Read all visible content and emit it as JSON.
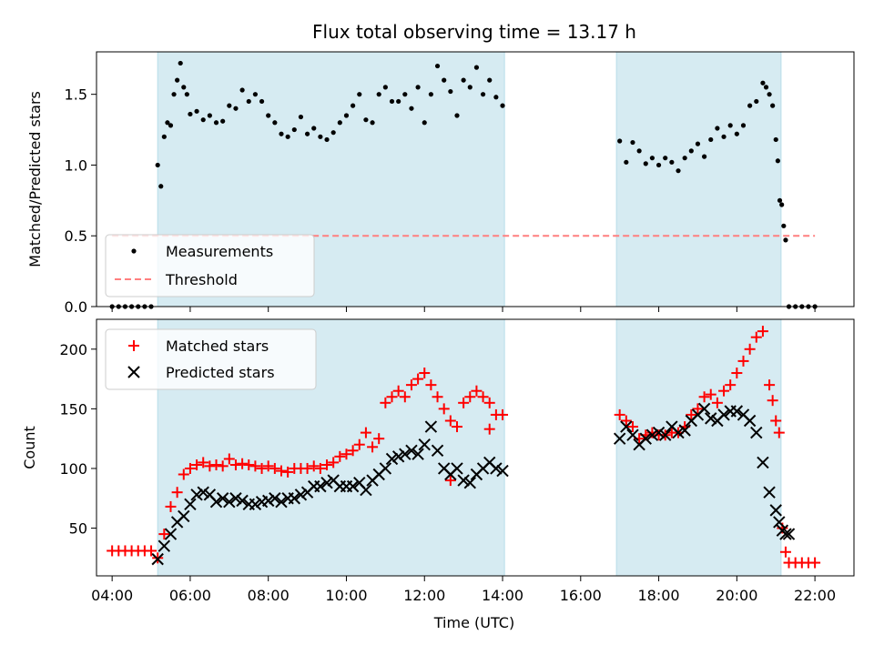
{
  "chart_data": [
    {
      "type": "scatter",
      "title": "Flux total observing time = 13.17 h",
      "xlabel": "",
      "ylabel": "Matched/Predicted stars",
      "ylim": [
        0,
        1.8
      ],
      "xlim_hours": [
        3.6,
        23.0
      ],
      "yticks": [
        0.0,
        0.5,
        1.0,
        1.5
      ],
      "ytick_labels": [
        "0.0",
        "0.5",
        "1.0",
        "1.5"
      ],
      "shaded_intervals": [
        [
          "05:10",
          "14:03"
        ],
        [
          "16:55",
          "21:08"
        ]
      ],
      "threshold": 0.5,
      "legend": {
        "placement": "lower-left",
        "entries": [
          "Measurements",
          "Threshold"
        ]
      },
      "series": [
        {
          "name": "Measurements",
          "marker": "dot",
          "color": "#000000",
          "x": [
            "04:00",
            "04:10",
            "04:20",
            "04:30",
            "04:40",
            "04:50",
            "05:00",
            "05:10",
            "05:15",
            "05:20",
            "05:25",
            "05:30",
            "05:35",
            "05:40",
            "05:45",
            "05:50",
            "05:55",
            "06:00",
            "06:10",
            "06:20",
            "06:30",
            "06:40",
            "06:50",
            "07:00",
            "07:10",
            "07:20",
            "07:30",
            "07:40",
            "07:50",
            "08:00",
            "08:10",
            "08:20",
            "08:30",
            "08:40",
            "08:50",
            "09:00",
            "09:10",
            "09:20",
            "09:30",
            "09:40",
            "09:50",
            "10:00",
            "10:10",
            "10:20",
            "10:30",
            "10:40",
            "10:50",
            "11:00",
            "11:10",
            "11:20",
            "11:30",
            "11:40",
            "11:50",
            "12:00",
            "12:10",
            "12:20",
            "12:30",
            "12:40",
            "12:50",
            "13:00",
            "13:10",
            "13:20",
            "13:30",
            "13:40",
            "13:50",
            "14:00",
            "17:00",
            "17:10",
            "17:20",
            "17:30",
            "17:40",
            "17:50",
            "18:00",
            "18:10",
            "18:20",
            "18:30",
            "18:40",
            "18:50",
            "19:00",
            "19:10",
            "19:20",
            "19:30",
            "19:40",
            "19:50",
            "20:00",
            "20:10",
            "20:20",
            "20:30",
            "20:40",
            "20:45",
            "20:50",
            "20:55",
            "21:00",
            "21:03",
            "21:06",
            "21:09",
            "21:12",
            "21:15",
            "21:20",
            "21:30",
            "21:40",
            "21:50",
            "22:00"
          ],
          "y": [
            0.0,
            0.0,
            0.0,
            0.0,
            0.0,
            0.0,
            0.0,
            1.0,
            0.85,
            1.2,
            1.3,
            1.28,
            1.5,
            1.6,
            1.72,
            1.55,
            1.5,
            1.36,
            1.38,
            1.32,
            1.35,
            1.3,
            1.31,
            1.42,
            1.4,
            1.53,
            1.45,
            1.5,
            1.45,
            1.35,
            1.3,
            1.22,
            1.2,
            1.25,
            1.34,
            1.22,
            1.26,
            1.2,
            1.18,
            1.23,
            1.3,
            1.35,
            1.42,
            1.5,
            1.32,
            1.3,
            1.5,
            1.55,
            1.45,
            1.45,
            1.5,
            1.4,
            1.55,
            1.3,
            1.5,
            1.7,
            1.6,
            1.52,
            1.35,
            1.6,
            1.55,
            1.69,
            1.5,
            1.6,
            1.48,
            1.42,
            1.17,
            1.02,
            1.16,
            1.1,
            1.01,
            1.05,
            1.0,
            1.05,
            1.02,
            0.96,
            1.05,
            1.1,
            1.15,
            1.06,
            1.18,
            1.26,
            1.2,
            1.28,
            1.22,
            1.28,
            1.42,
            1.45,
            1.58,
            1.55,
            1.5,
            1.42,
            1.18,
            1.03,
            0.75,
            0.72,
            0.57,
            0.47,
            0.0,
            0.0,
            0.0,
            0.0,
            0.0
          ]
        },
        {
          "name": "Threshold",
          "marker": "dashed-line",
          "color": "#ff7f7f",
          "x": [
            "04:00",
            "22:00"
          ],
          "y": [
            0.5,
            0.5
          ]
        }
      ]
    },
    {
      "type": "scatter",
      "title": "",
      "xlabel": "Time (UTC)",
      "ylabel": "Count",
      "ylim": [
        10,
        225
      ],
      "xlim_hours": [
        3.6,
        23.0
      ],
      "yticks": [
        50,
        100,
        150,
        200
      ],
      "ytick_labels": [
        "50",
        "100",
        "150",
        "200"
      ],
      "xticks": [
        "04:00",
        "06:00",
        "08:00",
        "10:00",
        "12:00",
        "14:00",
        "16:00",
        "18:00",
        "20:00",
        "22:00"
      ],
      "shaded_intervals": [
        [
          "05:10",
          "14:03"
        ],
        [
          "16:55",
          "21:08"
        ]
      ],
      "legend": {
        "placement": "upper-left",
        "entries": [
          "Matched stars",
          "Predicted stars"
        ]
      },
      "series": [
        {
          "name": "Matched stars",
          "marker": "plus",
          "color": "#ff0000",
          "x": [
            "04:00",
            "04:10",
            "04:20",
            "04:30",
            "04:40",
            "04:50",
            "05:00",
            "05:10",
            "05:20",
            "05:30",
            "05:40",
            "05:50",
            "06:00",
            "06:10",
            "06:20",
            "06:30",
            "06:40",
            "06:50",
            "07:00",
            "07:10",
            "07:20",
            "07:30",
            "07:40",
            "07:50",
            "08:00",
            "08:10",
            "08:20",
            "08:30",
            "08:40",
            "08:50",
            "09:00",
            "09:10",
            "09:20",
            "09:30",
            "09:40",
            "09:50",
            "10:00",
            "10:10",
            "10:20",
            "10:30",
            "10:40",
            "10:50",
            "11:00",
            "11:10",
            "11:20",
            "11:30",
            "11:40",
            "11:50",
            "12:00",
            "12:10",
            "12:20",
            "12:30",
            "12:40",
            "12:50",
            "13:00",
            "13:10",
            "13:20",
            "13:30",
            "13:40",
            "13:50",
            "14:00",
            "17:00",
            "17:10",
            "17:20",
            "17:30",
            "17:40",
            "17:50",
            "18:00",
            "18:10",
            "18:20",
            "18:30",
            "18:40",
            "18:50",
            "19:00",
            "19:10",
            "19:20",
            "19:30",
            "19:40",
            "19:50",
            "20:00",
            "20:10",
            "20:20",
            "20:30",
            "20:40",
            "20:50",
            "21:00",
            "21:05",
            "21:10",
            "21:15",
            "21:20",
            "21:30",
            "21:40",
            "21:50",
            "22:00"
          ],
          "y": [
            31,
            31,
            31,
            31,
            31,
            31,
            31,
            25,
            45,
            68,
            80,
            95,
            100,
            103,
            105,
            102,
            103,
            102,
            108,
            103,
            104,
            103,
            102,
            100,
            102,
            100,
            98,
            97,
            100,
            100,
            100,
            102,
            100,
            103,
            105,
            110,
            112,
            115,
            120,
            130,
            118,
            125,
            155,
            160,
            165,
            160,
            170,
            175,
            180,
            170,
            160,
            150,
            140,
            135,
            155,
            160,
            165,
            160,
            155,
            145,
            145,
            145,
            140,
            135,
            125,
            128,
            130,
            128,
            128,
            130,
            130,
            135,
            145,
            150,
            160,
            162,
            155,
            165,
            170,
            180,
            190,
            200,
            210,
            215,
            170,
            140,
            130,
            50,
            30,
            21,
            21,
            21,
            21,
            21
          ],
          "extra_markers": [
            {
              "x": "20:55",
              "y": 157
            },
            {
              "x": "12:40",
              "y": 90
            },
            {
              "x": "13:40",
              "y": 133
            }
          ]
        },
        {
          "name": "Predicted stars",
          "marker": "x",
          "color": "#000000",
          "x": [
            "05:10",
            "05:20",
            "05:30",
            "05:40",
            "05:50",
            "06:00",
            "06:10",
            "06:20",
            "06:30",
            "06:40",
            "06:50",
            "07:00",
            "07:10",
            "07:20",
            "07:30",
            "07:40",
            "07:50",
            "08:00",
            "08:10",
            "08:20",
            "08:30",
            "08:40",
            "08:50",
            "09:00",
            "09:10",
            "09:20",
            "09:30",
            "09:40",
            "09:50",
            "10:00",
            "10:10",
            "10:20",
            "10:30",
            "10:40",
            "10:50",
            "11:00",
            "11:10",
            "11:20",
            "11:30",
            "11:40",
            "11:50",
            "12:00",
            "12:10",
            "12:20",
            "12:30",
            "12:40",
            "12:50",
            "13:00",
            "13:10",
            "13:20",
            "13:30",
            "13:40",
            "13:50",
            "14:00",
            "17:00",
            "17:10",
            "17:20",
            "17:30",
            "17:40",
            "17:50",
            "18:00",
            "18:10",
            "18:20",
            "18:30",
            "18:40",
            "18:50",
            "19:00",
            "19:10",
            "19:20",
            "19:30",
            "19:40",
            "19:50",
            "20:00",
            "20:10",
            "20:20",
            "20:30",
            "20:40",
            "20:50",
            "21:00",
            "21:05",
            "21:10",
            "21:15",
            "21:20"
          ],
          "y": [
            24,
            35,
            45,
            55,
            60,
            70,
            78,
            80,
            78,
            72,
            75,
            72,
            75,
            73,
            70,
            70,
            72,
            73,
            75,
            72,
            75,
            75,
            78,
            80,
            85,
            85,
            88,
            90,
            85,
            85,
            85,
            88,
            82,
            90,
            95,
            100,
            108,
            110,
            112,
            115,
            112,
            120,
            135,
            115,
            100,
            95,
            100,
            90,
            88,
            95,
            100,
            105,
            100,
            98,
            125,
            135,
            128,
            120,
            125,
            128,
            130,
            128,
            135,
            130,
            132,
            140,
            145,
            150,
            142,
            140,
            145,
            148,
            148,
            145,
            140,
            130,
            105,
            80,
            65,
            55,
            48,
            45,
            45
          ]
        }
      ]
    }
  ]
}
